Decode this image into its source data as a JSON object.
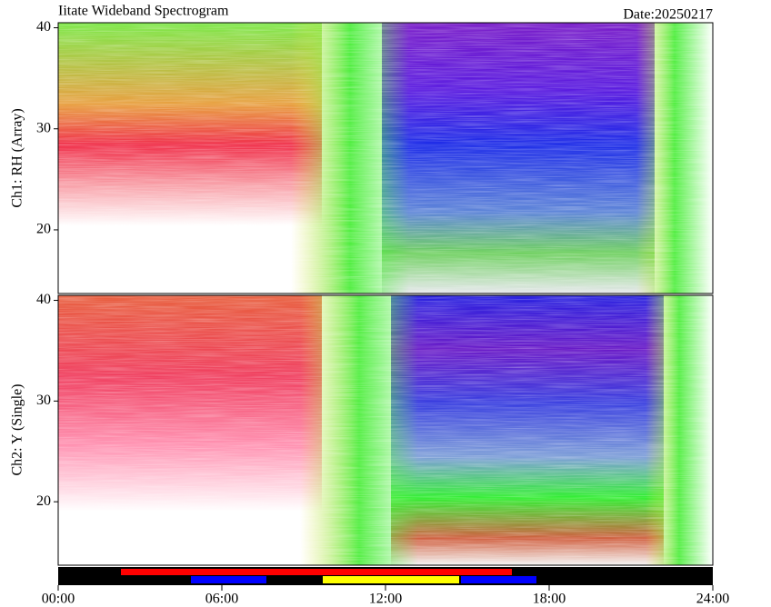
{
  "chart_data": [
    {
      "type": "spectrogram",
      "title": "Iitate Wideband Spectrogram",
      "subtitle": "Date:20250217",
      "y_label": "Ch1: RH (Array)",
      "ylim": [
        13.7,
        40.5
      ],
      "yticks": [
        20,
        30,
        40
      ]
    },
    {
      "type": "spectrogram",
      "y_label": "Ch2: Y (Single)",
      "ylim": [
        13.7,
        40.5
      ],
      "yticks": [
        20,
        30,
        40
      ],
      "xlim": [
        0,
        24
      ],
      "xticks": [
        {
          "value": 0,
          "label": "00:00"
        },
        {
          "value": 6,
          "label": "06:00"
        },
        {
          "value": 12,
          "label": "12:00"
        },
        {
          "value": 18,
          "label": "18:00"
        },
        {
          "value": 24,
          "label": "24:00"
        }
      ]
    }
  ]
}
